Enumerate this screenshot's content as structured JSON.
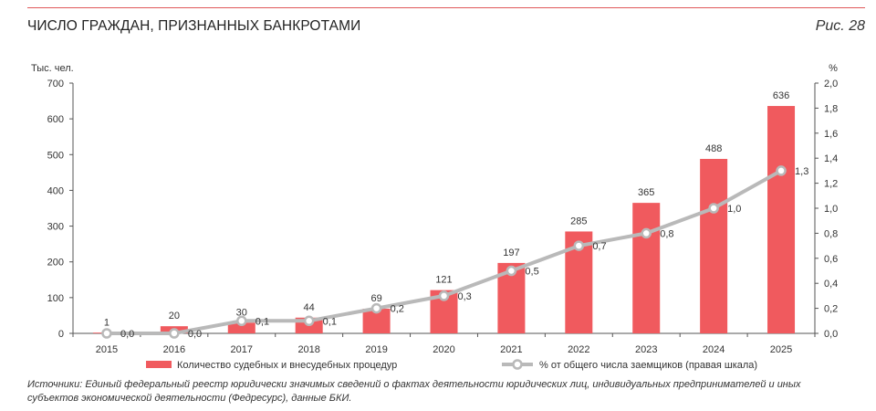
{
  "header": {
    "title": "ЧИСЛО ГРАЖДАН, ПРИЗНАННЫХ БАНКРОТАМИ",
    "figure_label": "Рис. 28"
  },
  "footer": {
    "sources": "Источники: Единый федеральный реестр юридически значимых сведений о фактах деятельности юридических лиц, индивидуальных предпринимателей и иных субъектов экономической деятельности (Федресурс), данные БКИ."
  },
  "colors": {
    "bar": "#f05a5e",
    "line": "#b9b9b9",
    "rule": "#e0595a"
  },
  "chart_data": {
    "type": "bar",
    "title": "ЧИСЛО ГРАЖДАН, ПРИЗНАННЫХ БАНКРОТАМИ",
    "categories": [
      "2015",
      "2016",
      "2017",
      "2018",
      "2019",
      "2020",
      "2021",
      "2022",
      "2023",
      "2024",
      "2025"
    ],
    "y_left_label": "Тыс. чел.",
    "y_right_label": "%",
    "y_left_range": [
      0,
      700
    ],
    "y_left_ticks": [
      "0",
      "100",
      "200",
      "300",
      "400",
      "500",
      "600",
      "700"
    ],
    "y_right_range": [
      0,
      2.0
    ],
    "y_right_ticks": [
      "0,0",
      "0,2",
      "0,4",
      "0,6",
      "0,8",
      "1,0",
      "1,2",
      "1,4",
      "1,6",
      "1,8",
      "2,0"
    ],
    "grid": false,
    "legend_position": "bottom",
    "series": [
      {
        "name": "Количество судебных и внесудебных процедур",
        "kind": "bar",
        "axis": "left",
        "values": [
          1,
          20,
          30,
          44,
          69,
          121,
          197,
          285,
          365,
          488,
          636
        ],
        "labels": [
          "1",
          "20",
          "30",
          "44",
          "69",
          "121",
          "197",
          "285",
          "365",
          "488",
          "636"
        ]
      },
      {
        "name": "% от общего числа заемщиков (правая шкала)",
        "kind": "line",
        "axis": "right",
        "values": [
          0.0,
          0.0,
          0.1,
          0.1,
          0.2,
          0.3,
          0.5,
          0.7,
          0.8,
          1.0,
          1.3
        ],
        "labels": [
          "0,0",
          "0,0",
          "0,1",
          "0,1",
          "0,2",
          "0,3",
          "0,5",
          "0,7",
          "0,8",
          "1,0",
          "1,3"
        ]
      }
    ]
  }
}
